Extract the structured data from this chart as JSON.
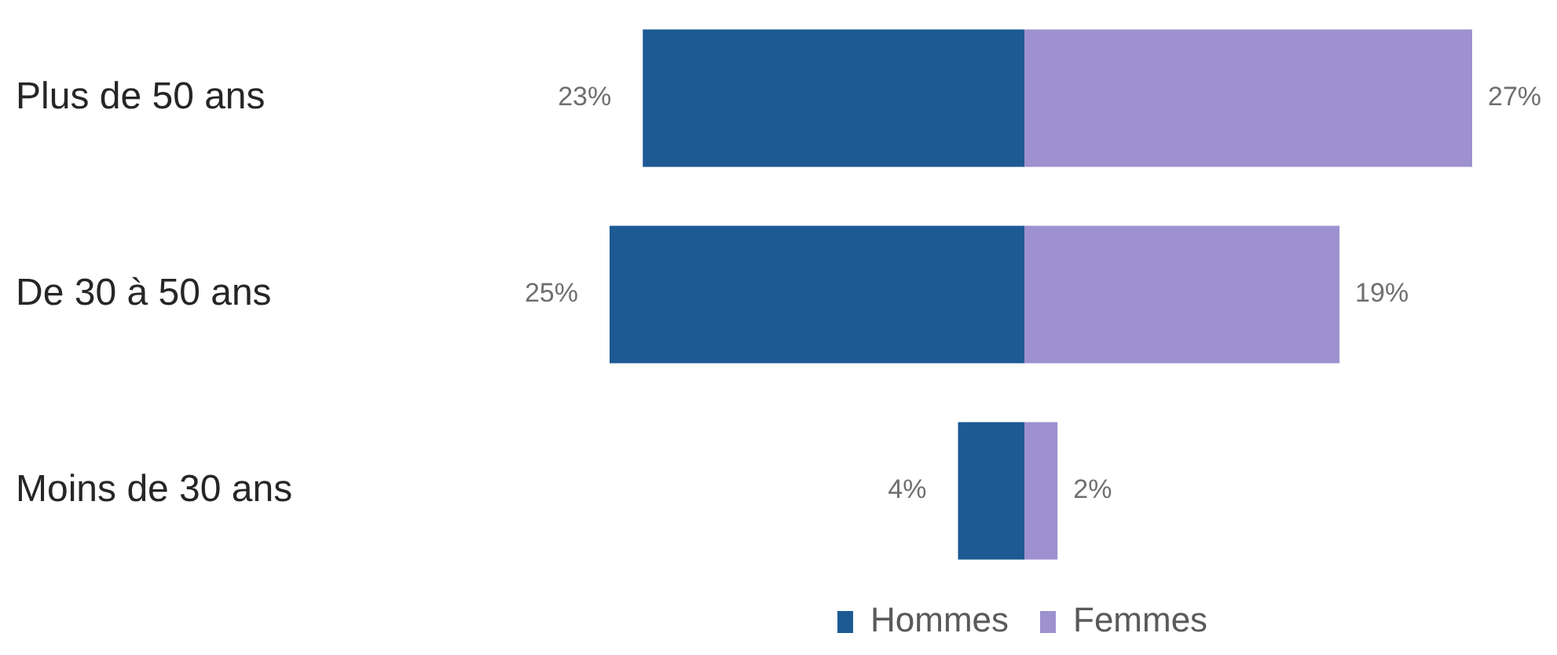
{
  "chart_data": [
    {
      "type": "bar",
      "orientation": "horizontal",
      "categories": [
        "Plus de 50 ans",
        "De 30 à 50 ans",
        "Moins de 30 ans"
      ],
      "series": [
        {
          "name": "Hommes",
          "color": "#1d5a94",
          "values": [
            23,
            25,
            4
          ],
          "value_labels": [
            "23%",
            "25%",
            "4%"
          ]
        }
      ],
      "xlim": [
        25,
        0
      ],
      "tick_labels": "y",
      "legend": "bottom right"
    },
    {
      "type": "bar",
      "orientation": "horizontal",
      "categories": [
        null,
        null,
        null
      ],
      "series": [
        {
          "name": "Femmes",
          "color": "#9d91cf",
          "values": [
            27,
            19,
            2
          ],
          "value_labels": [
            "27%",
            "19%",
            "2%"
          ]
        }
      ],
      "xlim": [
        0,
        27
      ],
      "tick_labels": false,
      "legend": "bottom left"
    }
  ]
}
